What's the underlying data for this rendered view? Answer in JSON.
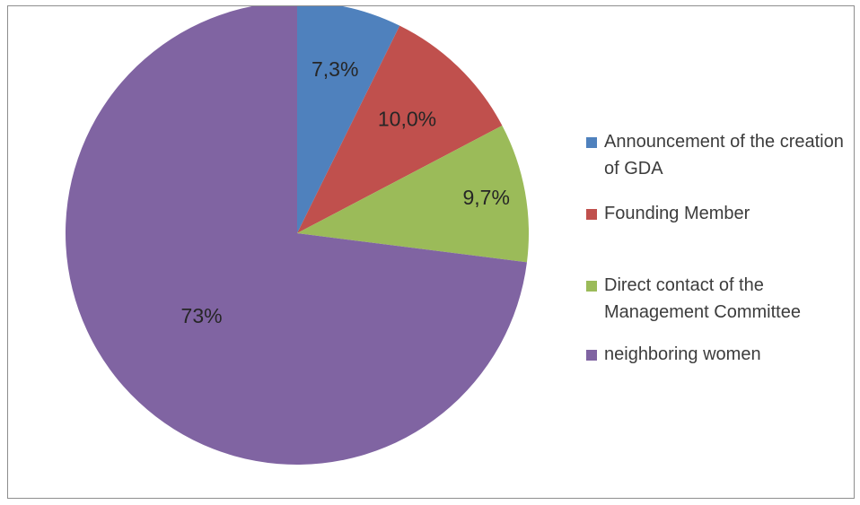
{
  "chart_data": {
    "type": "pie",
    "slices": [
      {
        "label": "Announcement of the creation of GDA",
        "value": 7.3,
        "display": "7,3%",
        "color": "#4f81bd"
      },
      {
        "label": "Founding Member",
        "value": 10.0,
        "display": "10,0%",
        "color": "#c0504d"
      },
      {
        "label": "Direct contact of the Management Committee",
        "value": 9.7,
        "display": "9,7%",
        "color": "#9bbb59"
      },
      {
        "label": "neighboring women",
        "value": 73,
        "display": "73%",
        "color": "#8064a2"
      }
    ],
    "legend_position": "right",
    "start_angle": "12 o'clock",
    "direction": "clockwise"
  }
}
